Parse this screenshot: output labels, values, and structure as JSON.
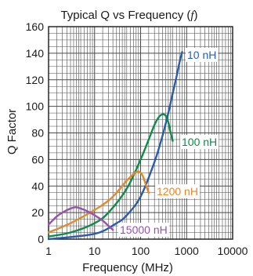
{
  "chart_data": {
    "type": "line",
    "title": "Typical Q vs Frequency (",
    "title_symbol": "f",
    "title_close": ")",
    "xlabel": "Frequency (MHz)",
    "ylabel": "Q Factor",
    "x_scale": "log",
    "xlim": [
      1,
      10000
    ],
    "ylim": [
      0,
      160
    ],
    "x_ticks": [
      1,
      10,
      100,
      1000,
      10000
    ],
    "x_tick_labels": [
      "1",
      "10",
      "100",
      "1000",
      "10000"
    ],
    "y_ticks": [
      0,
      20,
      40,
      60,
      80,
      100,
      120,
      140,
      160
    ],
    "y_tick_labels": [
      "0",
      "20",
      "40",
      "60",
      "80",
      "100",
      "120",
      "140",
      "160"
    ],
    "grid": true,
    "legend": "none",
    "series": [
      {
        "name": "10 nH",
        "color": "#2a5cab",
        "x": [
          1,
          10,
          30,
          50,
          100,
          200,
          300,
          400,
          500,
          600,
          700,
          800
        ],
        "y": [
          0,
          4,
          12,
          18,
          32,
          58,
          78,
          95,
          110,
          122,
          133,
          141
        ]
      },
      {
        "name": "100 nH",
        "color": "#0f8a4a",
        "x": [
          1,
          3,
          10,
          20,
          50,
          100,
          150,
          200,
          250,
          300,
          350,
          400,
          450,
          500
        ],
        "y": [
          2,
          5,
          12,
          20,
          38,
          60,
          75,
          86,
          92,
          94,
          93,
          88,
          80,
          74
        ]
      },
      {
        "name": "1200 nH",
        "color": "#e08a2e",
        "x": [
          1,
          3,
          10,
          20,
          30,
          50,
          70,
          90,
          110,
          130,
          150
        ],
        "y": [
          5,
          12,
          22,
          29,
          35,
          44,
          49,
          51,
          48,
          41,
          35
        ]
      },
      {
        "name": "15000 nH",
        "color": "#9a4fb0",
        "x": [
          1,
          1.5,
          2,
          3,
          4,
          6,
          8,
          10,
          15,
          20,
          25
        ],
        "y": [
          11,
          17,
          20,
          23,
          24,
          22,
          20,
          18,
          14,
          10,
          7
        ]
      }
    ]
  }
}
